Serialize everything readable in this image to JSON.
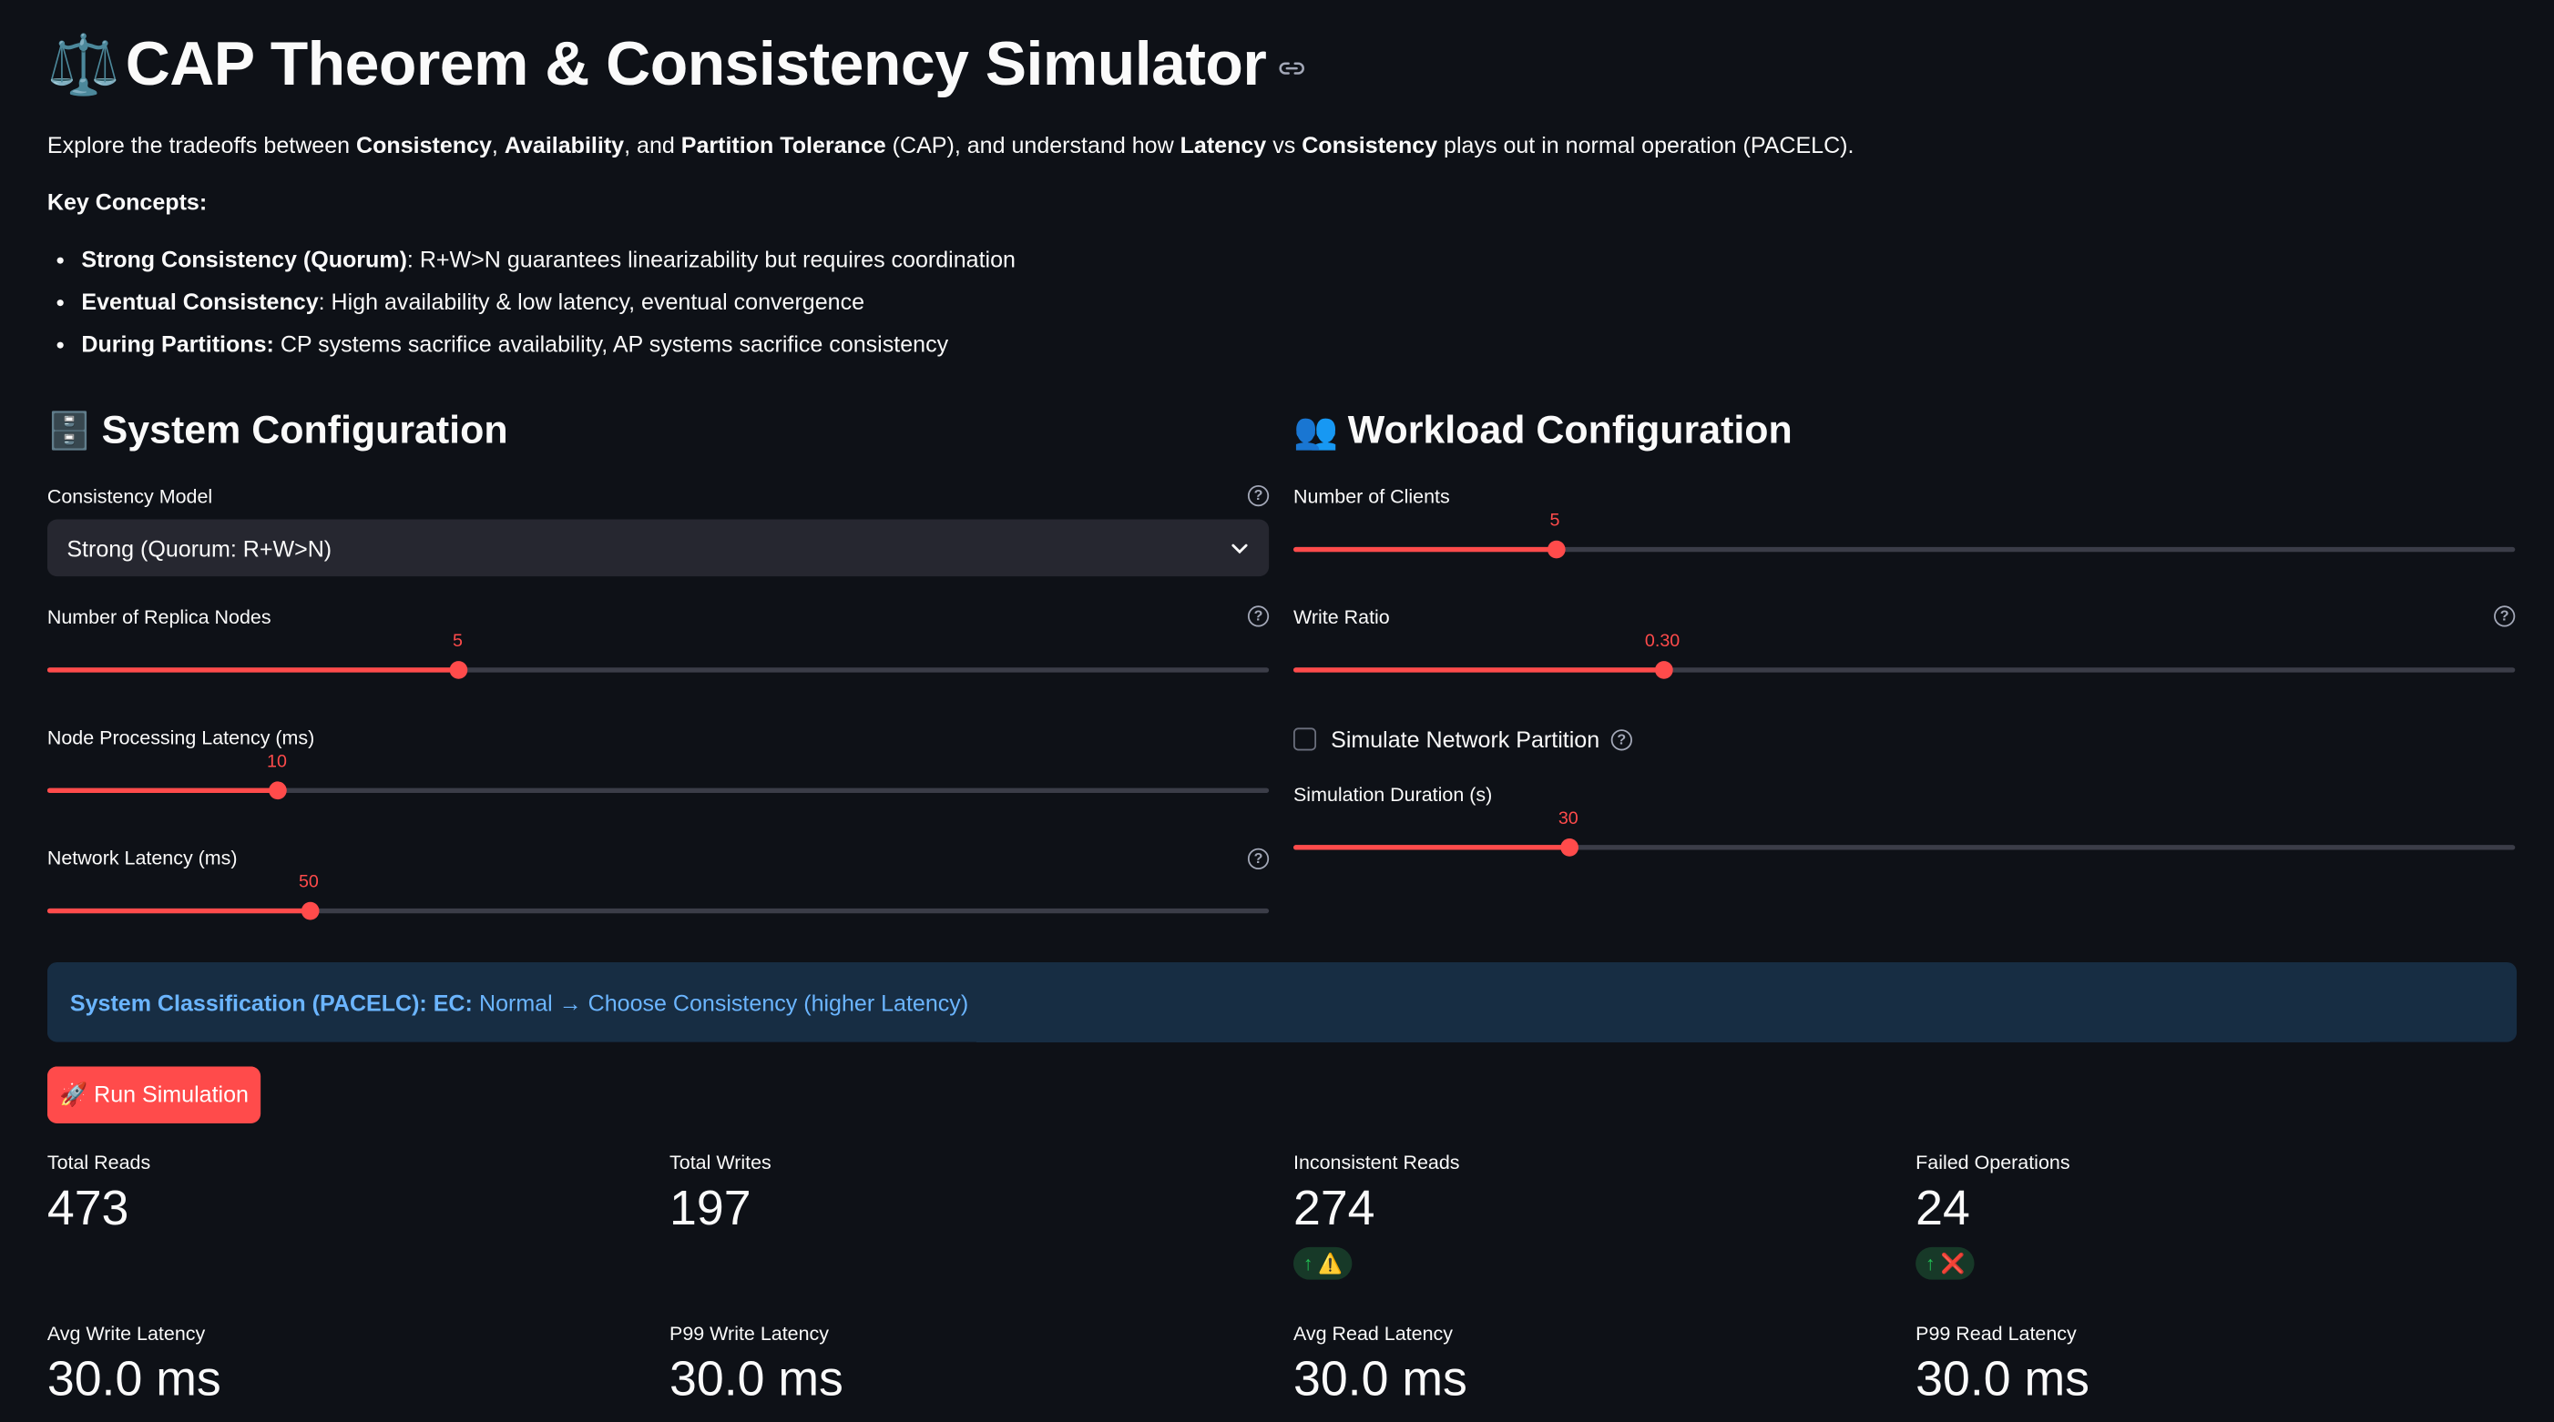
{
  "title": {
    "emoji": "⚖️",
    "text": "CAP Theorem & Consistency Simulator"
  },
  "intro": {
    "parts": [
      "Explore the tradeoffs between ",
      "Consistency",
      ", ",
      "Availability",
      ", and ",
      "Partition Tolerance",
      " (CAP), and understand how ",
      "Latency",
      " vs ",
      "Consistency",
      " plays out in normal operation (PACELC)."
    ]
  },
  "key_concepts_label": "Key Concepts:",
  "concepts": [
    {
      "bold": "Strong Consistency (Quorum)",
      "text": ": R+W>N guarantees linearizability but requires coordination"
    },
    {
      "bold": "Eventual Consistency",
      "text": ": High availability & low latency, eventual convergence"
    },
    {
      "bold": "During Partitions:",
      "text": " CP systems sacrifice availability, AP systems sacrifice consistency"
    }
  ],
  "system": {
    "heading": "System Configuration",
    "heading_emoji": "🗄️",
    "consistency_label": "Consistency Model",
    "consistency_value": "Strong (Quorum: R+W>N)",
    "replicas_label": "Number of Replica Nodes",
    "replicas_value": "5",
    "replicas_fraction": 0.336,
    "proc_label": "Node Processing Latency (ms)",
    "proc_value": "10",
    "proc_fraction": 0.188,
    "net_label": "Network Latency (ms)",
    "net_value": "50",
    "net_fraction": 0.214
  },
  "workload": {
    "heading": "Workload Configuration",
    "heading_emoji": "👥",
    "clients_label": "Number of Clients",
    "clients_value": "5",
    "clients_fraction": 0.214,
    "write_label": "Write Ratio",
    "write_value": "0.30",
    "write_fraction": 0.302,
    "partition_label": "Simulate Network Partition",
    "duration_label": "Simulation Duration (s)",
    "duration_value": "30",
    "duration_fraction": 0.225
  },
  "classification": {
    "bold": "System Classification (PACELC): EC:",
    "text": "Normal → Choose Consistency (higher Latency)"
  },
  "run_button": "🚀 Run Simulation",
  "metrics": [
    {
      "label": "Total Reads",
      "value": "473"
    },
    {
      "label": "Total Writes",
      "value": "197"
    },
    {
      "label": "Inconsistent Reads",
      "value": "274",
      "delta": "↑ ⚠️"
    },
    {
      "label": "Failed Operations",
      "value": "24",
      "delta": "↑ ❌"
    },
    {
      "label": "Avg Write Latency",
      "value": "30.0 ms"
    },
    {
      "label": "P99 Write Latency",
      "value": "30.0 ms"
    },
    {
      "label": "Avg Read Latency",
      "value": "30.0 ms"
    },
    {
      "label": "P99 Read Latency",
      "value": "30.0 ms"
    }
  ],
  "colors": {
    "background": "#0e1117",
    "accent": "#ff4b4b",
    "info_bg": "#172d43",
    "info_text": "#6bb5ff"
  },
  "icons": [
    "balance-scale-icon",
    "link-icon",
    "cabinet-icon",
    "users-icon",
    "help-icon",
    "chevron-down-icon",
    "rocket-icon"
  ]
}
